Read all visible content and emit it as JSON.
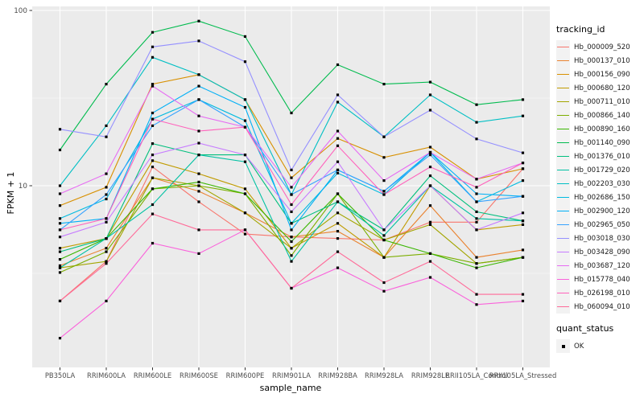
{
  "chart_data": {
    "type": "line",
    "title": "",
    "xlabel": "sample_name",
    "ylabel": "FPKM + 1",
    "y_scale": "log10",
    "y_ticks": [
      10,
      100
    ],
    "y_minor_ticks": [
      3.162,
      31.623
    ],
    "ylim": [
      0.92,
      105
    ],
    "grid": "on",
    "panel_bg": "#EBEBEB",
    "grid_color": "#FFFFFF",
    "tick_text_color": "#4D4D4D",
    "marker": {
      "shape": "square",
      "color": "#000000"
    },
    "legend": {
      "position": "right",
      "color_title": "tracking_id",
      "shape_title": "quant_status",
      "shape_items": [
        {
          "label": "OK",
          "shape": "square",
          "color": "#000000"
        }
      ]
    },
    "categories": [
      "PB350LA",
      "RRIM600LA",
      "RRIM600LE",
      "RRIM600SE",
      "RRIM600PE",
      "RRIM901LA",
      "RRIM928BA",
      "RRIM928LA",
      "RRIM928LE",
      "RRII105LA_Control",
      "RRII105LA_Stressed"
    ],
    "series": [
      {
        "name": "Hb_000009_520",
        "color": "#F8766D",
        "values": [
          2.2,
          3.7,
          12.8,
          8.1,
          5.3,
          5.1,
          5.0,
          4.9,
          6.2,
          6.2,
          12.5
        ]
      },
      {
        "name": "Hb_000137_010",
        "color": "#EA8331",
        "values": [
          3.5,
          4.4,
          11.1,
          9.3,
          7.0,
          5.1,
          5.5,
          3.9,
          7.7,
          3.9,
          4.3
        ]
      },
      {
        "name": "Hb_000156_090",
        "color": "#D89000",
        "values": [
          7.7,
          9.8,
          38,
          43,
          31,
          11.1,
          18.6,
          14.5,
          16.6,
          10.9,
          12.5
        ]
      },
      {
        "name": "Hb_000680_120",
        "color": "#C09B00",
        "values": [
          4.4,
          5.0,
          13.9,
          11.7,
          9.6,
          4.4,
          6.1,
          3.9,
          10,
          5.6,
          6.0
        ]
      },
      {
        "name": "Hb_000711_010",
        "color": "#A3A500",
        "values": [
          3.4,
          3.7,
          11.1,
          10,
          7.0,
          4.4,
          7.0,
          4.9,
          6.0,
          3.6,
          3.9
        ]
      },
      {
        "name": "Hb_000866_140",
        "color": "#7CAE00",
        "values": [
          3.2,
          4.2,
          9.6,
          10,
          9.0,
          4.0,
          9.0,
          3.9,
          4.1,
          3.6,
          3.9
        ]
      },
      {
        "name": "Hb_000890_160",
        "color": "#39B600",
        "values": [
          3.8,
          5.0,
          9.6,
          10.5,
          9.0,
          4.8,
          9.0,
          4.9,
          4.1,
          3.4,
          3.9
        ]
      },
      {
        "name": "Hb_001140_090",
        "color": "#00BB4E",
        "values": [
          16,
          38,
          75,
          87,
          71,
          26,
          49,
          38,
          39,
          29,
          31
        ]
      },
      {
        "name": "Hb_001376_010",
        "color": "#00BF7D",
        "values": [
          4.2,
          5.0,
          17.4,
          15,
          15,
          6.1,
          8.1,
          5.6,
          11.4,
          7.1,
          6.3
        ]
      },
      {
        "name": "Hb_001729_020",
        "color": "#00C1A3",
        "values": [
          3.4,
          5.0,
          7.8,
          15,
          13.7,
          3.7,
          8.1,
          5.2,
          10,
          6.5,
          6.3
        ]
      },
      {
        "name": "Hb_002203_030",
        "color": "#00BFC4",
        "values": [
          10,
          22,
          54,
          43,
          31,
          8.9,
          30,
          19,
          33,
          23,
          25
        ]
      },
      {
        "name": "Hb_002686_150",
        "color": "#00BAE0",
        "values": [
          6.5,
          8.4,
          24,
          31,
          23.5,
          6.1,
          11.8,
          8.9,
          15.5,
          8.1,
          10.7
        ]
      },
      {
        "name": "Hb_002900_120",
        "color": "#00B0F6",
        "values": [
          6.1,
          6.5,
          26,
          37,
          28,
          5.6,
          12.3,
          9.3,
          15.5,
          9.0,
          8.7
        ]
      },
      {
        "name": "Hb_002965_050",
        "color": "#35A2FF",
        "values": [
          5.6,
          8.9,
          22,
          31,
          21.6,
          8.9,
          12.3,
          9.3,
          15.0,
          8.1,
          8.7
        ]
      },
      {
        "name": "Hb_003018_030",
        "color": "#9590FF",
        "values": [
          21,
          19,
          62,
          67,
          51,
          12.3,
          33,
          19,
          27,
          18.5,
          15.4
        ]
      },
      {
        "name": "Hb_003428_090",
        "color": "#C77CFF",
        "values": [
          5.1,
          6.2,
          15,
          17.5,
          15,
          7.1,
          13.7,
          5.6,
          10,
          5.6,
          7.0
        ]
      },
      {
        "name": "Hb_003687_120",
        "color": "#E76BF3",
        "values": [
          9.0,
          11.7,
          37,
          25,
          21.6,
          9.8,
          20.5,
          10.7,
          15.5,
          10.9,
          13.5
        ]
      },
      {
        "name": "Hb_015778_040",
        "color": "#FA62DB",
        "values": [
          1.35,
          2.2,
          4.7,
          4.1,
          5.6,
          2.6,
          3.4,
          2.5,
          3.0,
          2.1,
          2.2
        ]
      },
      {
        "name": "Hb_026198_010",
        "color": "#FF62BC",
        "values": [
          5.6,
          6.5,
          24,
          20.5,
          21.6,
          7.8,
          16.9,
          8.9,
          12.8,
          9.8,
          13.5
        ]
      },
      {
        "name": "Hb_060094_010",
        "color": "#FF6A98",
        "values": [
          2.2,
          3.6,
          6.9,
          5.6,
          5.6,
          2.6,
          4.2,
          2.8,
          3.7,
          2.4,
          2.4
        ]
      }
    ]
  }
}
